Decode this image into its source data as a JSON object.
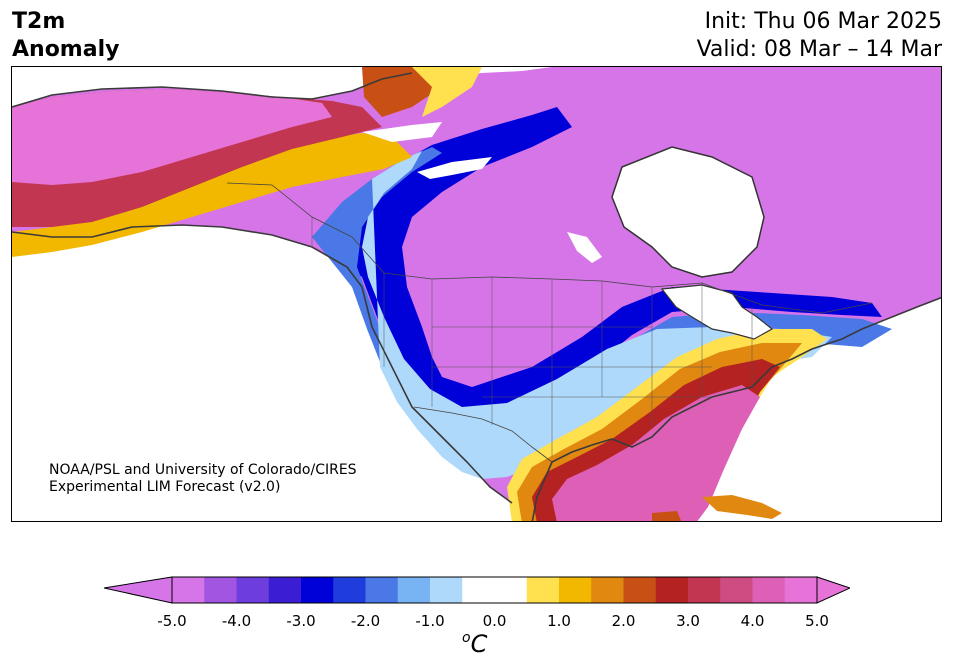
{
  "header": {
    "title_line1": "T2m",
    "title_line2": "Anomaly",
    "init_text": "Init: Thu 06 Mar 2025",
    "valid_text": "Valid: 08 Mar – 14 Mar"
  },
  "credit": {
    "line1": "NOAA/PSL and University of Colorado/CIRES",
    "line2": "Experimental LIM Forecast (v2.0)"
  },
  "colorbar": {
    "ticks": [
      "-5.0",
      "-4.0",
      "-3.0",
      "-2.0",
      "-1.0",
      "0.0",
      "1.0",
      "2.0",
      "3.0",
      "4.0",
      "5.0"
    ],
    "unit_sup": "o",
    "unit_main": "C",
    "colors": [
      "#d675e8",
      "#a155e0",
      "#6d3ddd",
      "#3b1ed3",
      "#0000d8",
      "#1e3ddc",
      "#4a78e6",
      "#78b3f4",
      "#aed9fb",
      "#ffffff",
      "#ffffff",
      "#ffe04e",
      "#f2b800",
      "#e08810",
      "#c85014",
      "#b42222",
      "#c23652",
      "#cf4c82",
      "#dd60b6",
      "#e674d8"
    ],
    "extend_low_color": "#d675e8",
    "extend_high_color": "#e674d8"
  }
}
